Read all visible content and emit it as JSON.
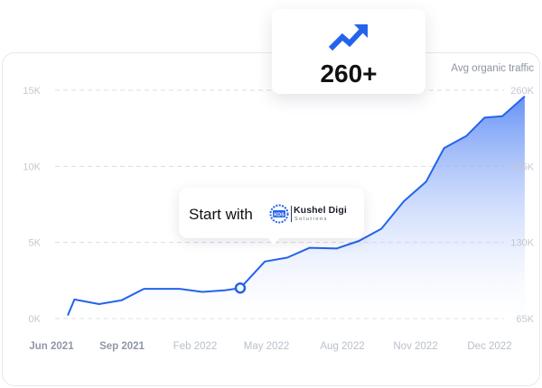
{
  "stat_card": {
    "value": "260+",
    "icon": "trending-up-arrow-icon"
  },
  "callout": {
    "text": "Start with",
    "logo_name": "Kushel Digi",
    "logo_sub": "Solutions",
    "logo_mark": "KDS"
  },
  "chart_data": {
    "type": "area",
    "right_axis_title": "Avg organic traffic",
    "left_ticks": [
      "0K",
      "5K",
      "10K",
      "15K"
    ],
    "right_ticks": [
      "65K",
      "130K",
      "195K",
      "260K"
    ],
    "x_ticks": [
      "Jun 2021",
      "Sep 2021",
      "Feb 2022",
      "May 2022",
      "Aug 2022",
      "Nov 2022",
      "Dec 2022"
    ],
    "ylim": [
      0,
      15000
    ],
    "grid": "horizontal dashed",
    "series": [
      {
        "points": [
          [
            0.0,
            200
          ],
          [
            0.15,
            1250
          ],
          [
            0.7,
            950
          ],
          [
            1.2,
            1200
          ],
          [
            1.7,
            1950
          ],
          [
            2.5,
            1950
          ],
          [
            3.0,
            1750
          ],
          [
            3.5,
            1850
          ],
          [
            3.85,
            2000
          ],
          [
            4.4,
            3750
          ],
          [
            4.9,
            4000
          ],
          [
            5.4,
            4650
          ],
          [
            6.0,
            4600
          ],
          [
            6.5,
            5100
          ],
          [
            7.0,
            5900
          ],
          [
            7.5,
            7700
          ],
          [
            8.0,
            9000
          ],
          [
            8.4,
            11200
          ],
          [
            8.9,
            12000
          ],
          [
            9.3,
            13200
          ],
          [
            9.7,
            13300
          ],
          [
            10.2,
            14600
          ]
        ]
      }
    ],
    "marker": {
      "x": 3.85,
      "y": 2000
    },
    "colors": {
      "line": "#2463eb",
      "fill_top": "#5f8df5",
      "fill_bottom": "#ffffff",
      "grid": "#d9dce3",
      "tick": "#c2c7d2",
      "x_tick": "#a9b0bd"
    }
  }
}
